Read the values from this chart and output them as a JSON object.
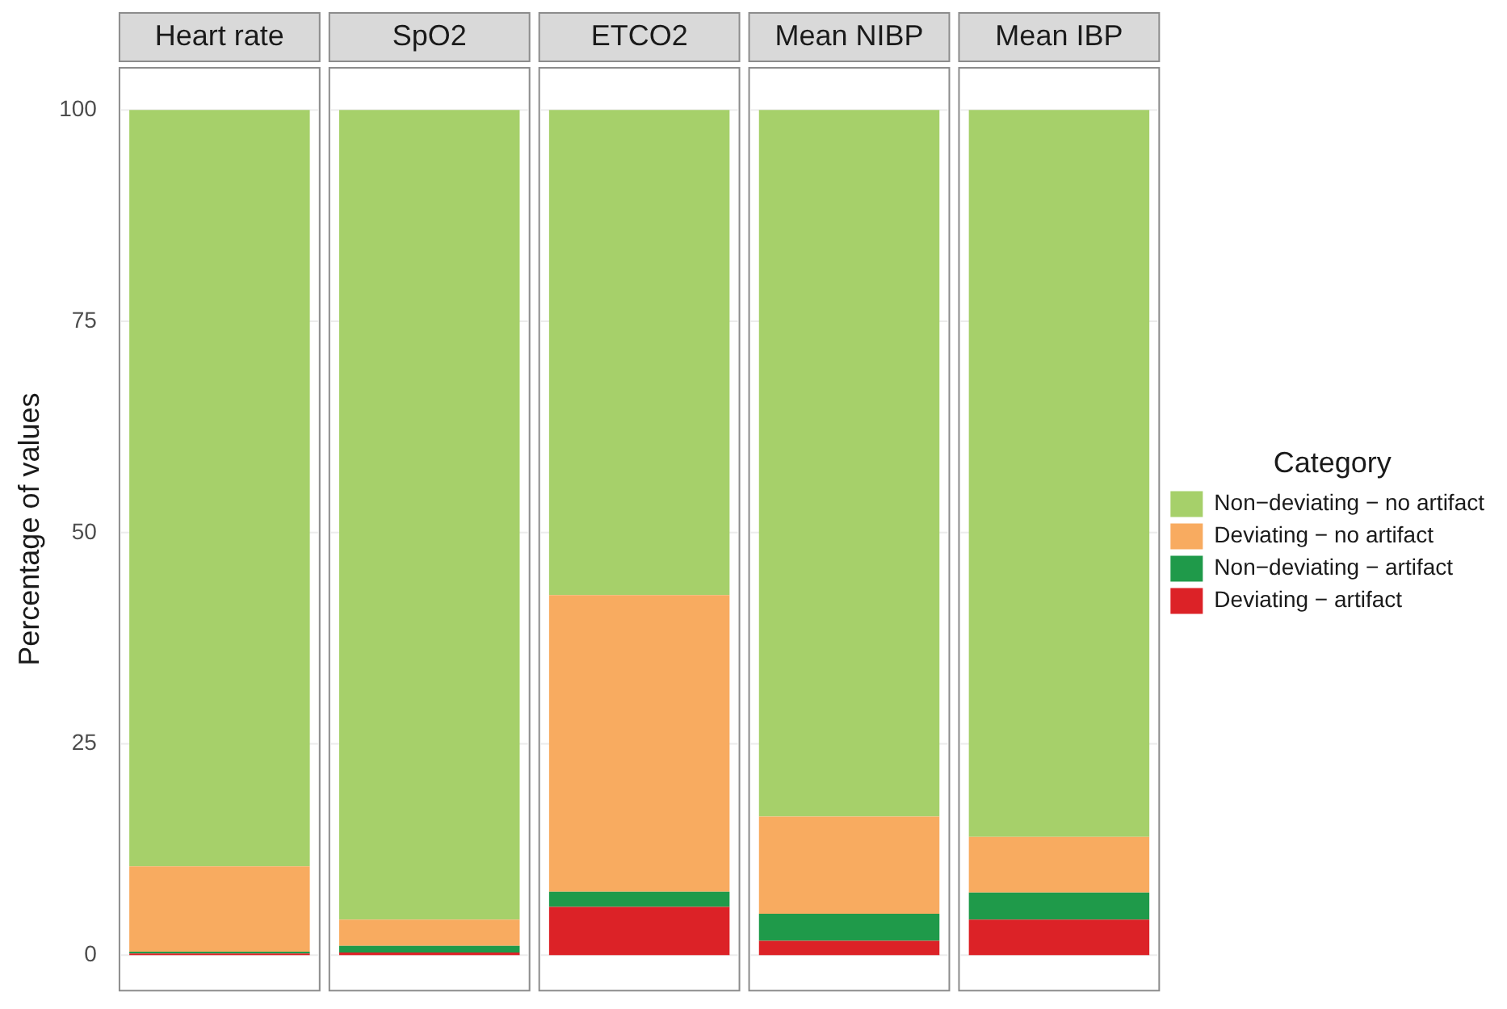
{
  "chart_data": {
    "type": "bar",
    "stacked": true,
    "categories": [
      "Heart rate",
      "SpO2",
      "ETCO2",
      "Mean NIBP",
      "Mean IBP"
    ],
    "ylabel": "Percentage of values",
    "legend_title": "Category",
    "series": [
      {
        "name": "Deviating − artifact",
        "color": "#dc2227",
        "values": [
          0.2,
          0.3,
          5.7,
          1.7,
          4.2
        ]
      },
      {
        "name": "Non−deviating − artifact",
        "color": "#1f9a4a",
        "values": [
          0.2,
          0.8,
          1.8,
          3.2,
          3.2
        ]
      },
      {
        "name": "Deviating − no artifact",
        "color": "#f8ab60",
        "values": [
          10.1,
          3.1,
          35.1,
          11.5,
          6.6
        ]
      },
      {
        "name": "Non−deviating − no artifact",
        "color": "#a6d06a",
        "values": [
          89.5,
          95.8,
          57.4,
          83.6,
          86.0
        ]
      }
    ],
    "ylim": [
      -4.2,
      105
    ],
    "yticks": [
      0,
      25,
      50,
      75,
      100
    ],
    "grid": "y",
    "legend": "right"
  }
}
